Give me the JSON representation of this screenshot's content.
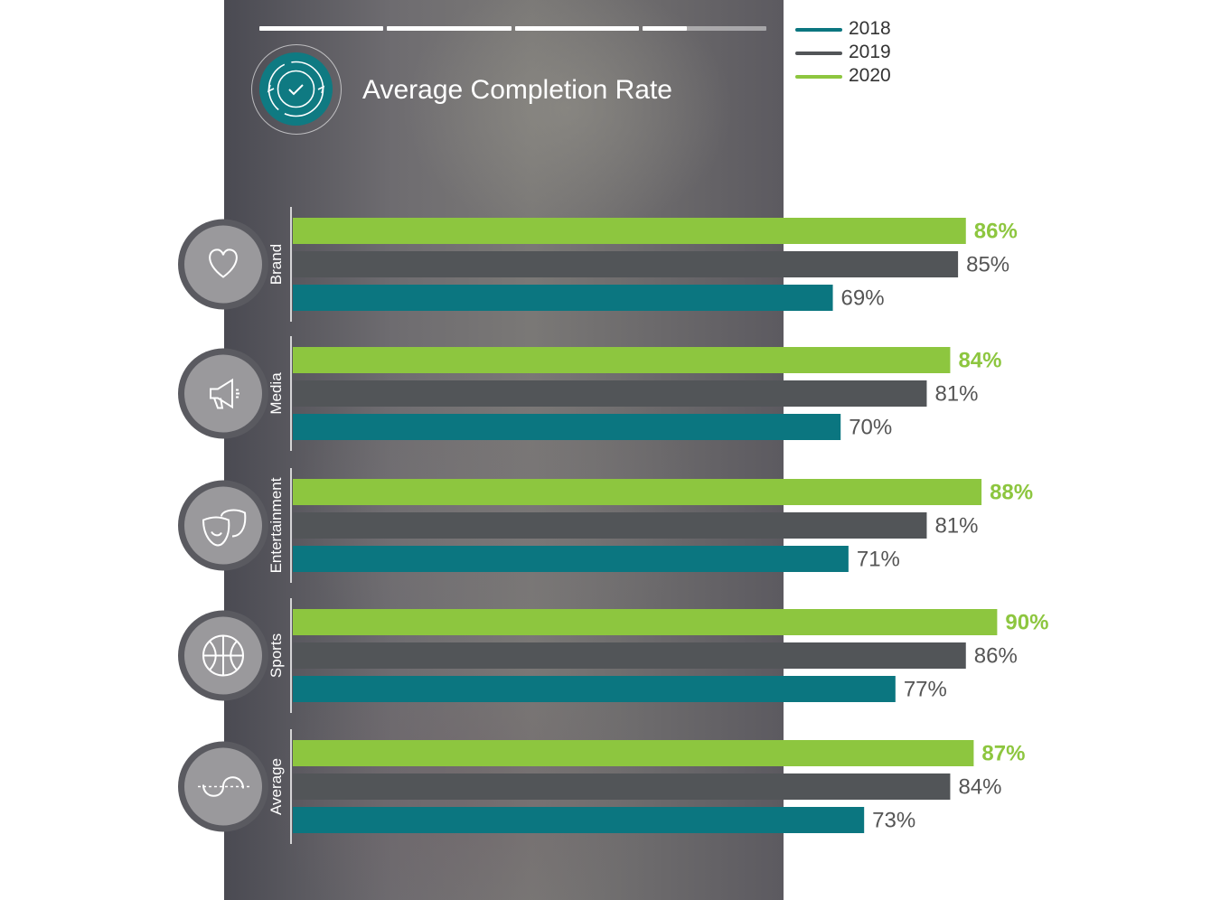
{
  "progress": {
    "segments": [
      1,
      1,
      1,
      0.36
    ]
  },
  "colors": {
    "2018": "#0b7680",
    "2019": "#525558",
    "2020": "#8dc63f",
    "panel_icon": "#0f7a82"
  },
  "chart_data": {
    "type": "bar",
    "orientation": "horizontal",
    "title": "Average Completion Rate",
    "categories": [
      "Brand",
      "Media",
      "Entertainment",
      "Sports",
      "Average"
    ],
    "category_icons": [
      "heart-icon",
      "megaphone-icon",
      "theater-masks-icon",
      "basketball-icon",
      "average-curve-icon"
    ],
    "series": [
      {
        "name": "2020",
        "values": [
          86,
          84,
          88,
          90,
          87
        ],
        "labels": [
          "86%",
          "84%",
          "88%",
          "90%",
          "87%"
        ],
        "color": "#8dc63f"
      },
      {
        "name": "2019",
        "values": [
          85,
          81,
          81,
          86,
          84
        ],
        "labels": [
          "85%",
          "81%",
          "81%",
          "86%",
          "84%"
        ],
        "color": "#525558"
      },
      {
        "name": "2018",
        "values": [
          69,
          70,
          71,
          77,
          73
        ],
        "labels": [
          "69%",
          "70%",
          "71%",
          "77%",
          "73%"
        ],
        "color": "#0b7680"
      }
    ],
    "legend": {
      "position": "top-right",
      "order": [
        "2018",
        "2019",
        "2020"
      ]
    },
    "unit": "%",
    "grid": false
  }
}
